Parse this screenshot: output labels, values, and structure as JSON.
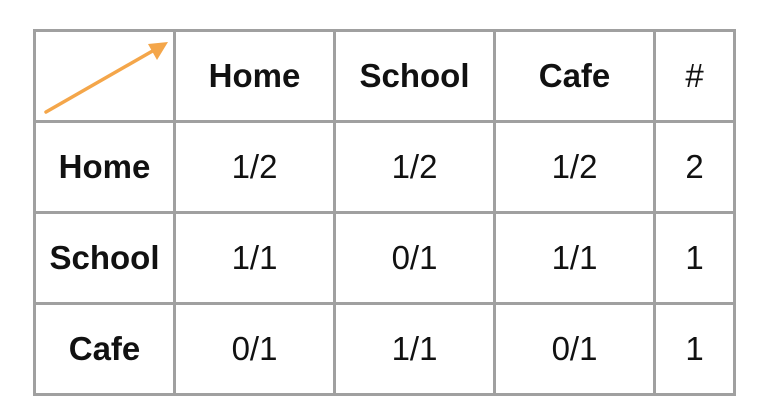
{
  "table": {
    "corner": {
      "icon": "arrow-up-right-icon",
      "arrow_color": "#f4a64a"
    },
    "columns": [
      {
        "label": "Home",
        "color": "#4a86e8"
      },
      {
        "label": "School",
        "color": "#1e9e55"
      },
      {
        "label": "Cafe",
        "color": "#db4437"
      },
      {
        "label": "#",
        "color": "#111111"
      }
    ],
    "rows": [
      {
        "label": "Home",
        "color": "#4a86e8",
        "cells": [
          "1/2",
          "1/2",
          "1/2",
          "2"
        ]
      },
      {
        "label": "School",
        "color": "#1e9e55",
        "cells": [
          "1/1",
          "0/1",
          "1/1",
          "1"
        ]
      },
      {
        "label": "Cafe",
        "color": "#db4437",
        "cells": [
          "0/1",
          "1/1",
          "0/1",
          "1"
        ]
      }
    ]
  }
}
